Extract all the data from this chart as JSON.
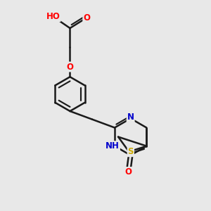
{
  "bg_color": "#e8e8e8",
  "bond_color": "#1a1a1a",
  "bond_width": 1.8,
  "atom_colors": {
    "O": "#ff0000",
    "N": "#0000cc",
    "S": "#ccaa00",
    "C": "#1a1a1a",
    "H": "#1a1a1a"
  },
  "font_size": 8.5,
  "figsize": [
    3.0,
    3.0
  ],
  "dpi": 100
}
